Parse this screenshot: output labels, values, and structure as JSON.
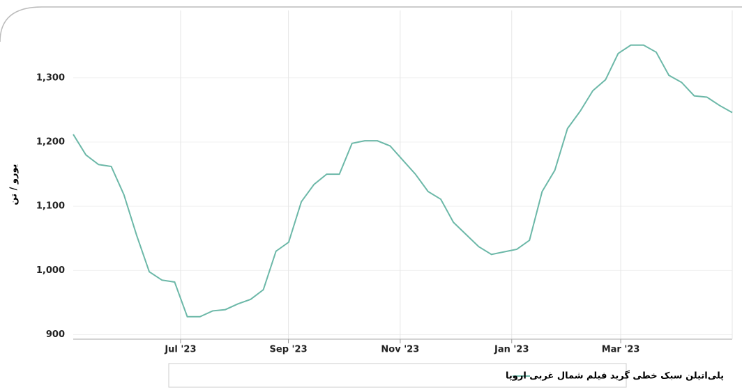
{
  "chart_data": {
    "type": "line",
    "y_label": "یورو / تن",
    "x": [
      0,
      1,
      2,
      3,
      4,
      5,
      6,
      7,
      8,
      9,
      10,
      11,
      12,
      13,
      14,
      15,
      16,
      17,
      18,
      19,
      20,
      21,
      22,
      23,
      24,
      25,
      26,
      27,
      28,
      29,
      30,
      31,
      32,
      33,
      34,
      35,
      36,
      37,
      38,
      39,
      40,
      41,
      42,
      43,
      44,
      45,
      46,
      47,
      48,
      49,
      50,
      51,
      52
    ],
    "series": [
      {
        "name": "پلی‌اتیلن سبک خطی گرید فیلم شمال غربی اروپا",
        "color": "#6cb8a8",
        "values": [
          1212,
          1180,
          1165,
          1162,
          1118,
          1055,
          998,
          985,
          982,
          928,
          928,
          937,
          939,
          948,
          955,
          970,
          1030,
          1044,
          1107,
          1134,
          1150,
          1150,
          1198,
          1202,
          1202,
          1194,
          1172,
          1150,
          1123,
          1111,
          1075,
          1056,
          1037,
          1025,
          1029,
          1033,
          1047,
          1123,
          1156,
          1221,
          1248,
          1280,
          1297,
          1338,
          1351,
          1351,
          1340,
          1304,
          1293,
          1272,
          1270,
          1257,
          1246
        ]
      }
    ],
    "xlim": [
      0,
      52
    ],
    "xticks": [
      {
        "value": 8.47,
        "label": "Jul '23"
      },
      {
        "value": 16.98,
        "label": "Sep '23"
      },
      {
        "value": 25.8,
        "label": "Nov '23"
      },
      {
        "value": 34.6,
        "label": "Jan '23"
      },
      {
        "value": 43.2,
        "label": "Mar '23"
      }
    ],
    "ylim": [
      893,
      1405
    ],
    "yticks": [
      900,
      {
        "value": 1000,
        "label": "1,000"
      },
      {
        "value": 1100,
        "label": "1,100"
      },
      {
        "value": 1200,
        "label": "1,200"
      },
      {
        "value": 1300,
        "label": "1,300"
      }
    ],
    "grid": true
  }
}
